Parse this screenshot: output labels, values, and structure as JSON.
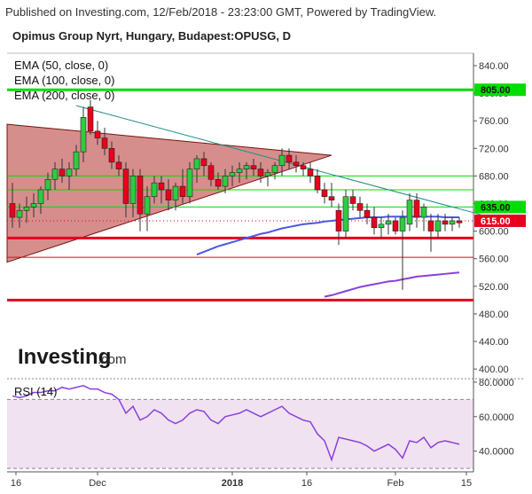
{
  "header": {
    "published": "Published on Investing.com, 12/Feb/2018 - 23:23:00 GMT, Powered by TradingView.",
    "title": "Opimus Group Nyrt, Hungary, Budapest:OPUSG, D"
  },
  "watermark": {
    "brand": "Investing",
    "suffix": ".com"
  },
  "colors": {
    "up_candle": "#2ecc40",
    "down_candle": "#e8001c",
    "wick": "#333333",
    "ema50": "#4a58e0",
    "ema200": "#8a3fdd",
    "support_red": "#e8001c",
    "resist_green": "#00dd00",
    "triangle_fill": "#b3312e",
    "trendline": "#1f8a8a",
    "rsi_line": "#8a3fdd",
    "rsi_band": "#f0e2f0"
  },
  "chart_data": [
    {
      "type": "candlestick",
      "legend": [
        "EMA (50, close, 0)",
        "EMA (100, close, 0)",
        "EMA (200, close, 0)"
      ],
      "ylim": [
        386,
        858
      ],
      "yticks": [
        "840.00",
        "800.00",
        "760.00",
        "720.00",
        "680.00",
        "640.00",
        "600.00",
        "560.00",
        "520.00",
        "480.00",
        "440.00",
        "400.00"
      ],
      "xticks": [
        "16",
        "Dec",
        "2018",
        "16",
        "Feb",
        "15"
      ],
      "tags": [
        {
          "label": "805.00",
          "value": 805,
          "color": "#00dd00"
        },
        {
          "label": "635.00",
          "value": 635,
          "color": "#00dd00"
        },
        {
          "label": "615.00",
          "value": 615,
          "color": "#e8001c"
        }
      ],
      "horizontal_lines": [
        {
          "value": 805,
          "color": "#00dd00",
          "style": "thick"
        },
        {
          "value": 680,
          "color": "#00dd00",
          "style": "thin"
        },
        {
          "value": 660,
          "color": "#00dd00",
          "style": "thin"
        },
        {
          "value": 635,
          "color": "#00dd00",
          "style": "thin"
        },
        {
          "value": 615,
          "color": "#e8001c",
          "style": "dotted"
        },
        {
          "value": 590,
          "color": "#e8001c",
          "style": "thick"
        },
        {
          "value": 562,
          "color": "#e8001c",
          "style": "thin"
        },
        {
          "value": 500,
          "color": "#e8001c",
          "style": "thick"
        }
      ],
      "candles": [
        [
          640,
          670,
          605,
          620
        ],
        [
          620,
          640,
          605,
          630
        ],
        [
          630,
          650,
          612,
          635
        ],
        [
          635,
          655,
          620,
          640
        ],
        [
          640,
          665,
          625,
          660
        ],
        [
          660,
          685,
          645,
          675
        ],
        [
          675,
          700,
          660,
          690
        ],
        [
          690,
          705,
          670,
          680
        ],
        [
          680,
          700,
          660,
          690
        ],
        [
          690,
          725,
          680,
          715
        ],
        [
          715,
          780,
          700,
          765
        ],
        [
          780,
          790,
          740,
          745
        ],
        [
          745,
          760,
          725,
          735
        ],
        [
          735,
          750,
          710,
          720
        ],
        [
          720,
          730,
          690,
          700
        ],
        [
          700,
          710,
          680,
          690
        ],
        [
          690,
          700,
          620,
          640
        ],
        [
          640,
          690,
          620,
          680
        ],
        [
          680,
          690,
          600,
          625
        ],
        [
          625,
          665,
          600,
          650
        ],
        [
          650,
          680,
          640,
          670
        ],
        [
          670,
          680,
          640,
          660
        ],
        [
          660,
          675,
          630,
          645
        ],
        [
          645,
          670,
          630,
          665
        ],
        [
          665,
          690,
          640,
          650
        ],
        [
          650,
          700,
          640,
          690
        ],
        [
          690,
          710,
          670,
          705
        ],
        [
          705,
          715,
          680,
          695
        ],
        [
          695,
          700,
          665,
          675
        ],
        [
          675,
          685,
          660,
          665
        ],
        [
          665,
          690,
          655,
          680
        ],
        [
          680,
          695,
          665,
          685
        ],
        [
          685,
          700,
          670,
          690
        ],
        [
          690,
          700,
          675,
          695
        ],
        [
          695,
          705,
          680,
          690
        ],
        [
          690,
          700,
          670,
          680
        ],
        [
          680,
          690,
          665,
          685
        ],
        [
          685,
          700,
          675,
          695
        ],
        [
          695,
          720,
          680,
          710
        ],
        [
          710,
          720,
          690,
          700
        ],
        [
          700,
          710,
          685,
          695
        ],
        [
          695,
          700,
          680,
          690
        ],
        [
          690,
          700,
          670,
          680
        ],
        [
          680,
          690,
          655,
          660
        ],
        [
          660,
          670,
          640,
          650
        ],
        [
          650,
          670,
          635,
          645
        ],
        [
          630,
          640,
          580,
          600
        ],
        [
          600,
          660,
          590,
          650
        ],
        [
          650,
          660,
          630,
          640
        ],
        [
          640,
          650,
          620,
          630
        ],
        [
          630,
          640,
          610,
          620
        ],
        [
          620,
          635,
          595,
          605
        ],
        [
          605,
          620,
          590,
          610
        ],
        [
          610,
          625,
          595,
          615
        ],
        [
          615,
          620,
          595,
          600
        ],
        [
          600,
          630,
          515,
          620
        ],
        [
          610,
          655,
          600,
          645
        ],
        [
          645,
          655,
          605,
          620
        ],
        [
          620,
          640,
          600,
          635
        ],
        [
          615,
          625,
          570,
          600
        ],
        [
          600,
          625,
          590,
          615
        ],
        [
          615,
          625,
          600,
          610
        ],
        [
          610,
          620,
          600,
          615
        ],
        [
          615,
          620,
          605,
          612
        ]
      ],
      "ema50": [
        null,
        null,
        null,
        null,
        null,
        null,
        null,
        null,
        null,
        null,
        null,
        null,
        null,
        null,
        null,
        null,
        null,
        null,
        null,
        null,
        null,
        null,
        null,
        null,
        null,
        null,
        566,
        570,
        574,
        578,
        581,
        584,
        587,
        590,
        593,
        596,
        598,
        601,
        604,
        606,
        608,
        610,
        611,
        612,
        614,
        615,
        616,
        617,
        618,
        619,
        620,
        620,
        620,
        621,
        621,
        621,
        621,
        621,
        621,
        621,
        621,
        620,
        620,
        620
      ],
      "ema200": [
        null,
        null,
        null,
        null,
        null,
        null,
        null,
        null,
        null,
        null,
        null,
        null,
        null,
        null,
        null,
        null,
        null,
        null,
        null,
        null,
        null,
        null,
        null,
        null,
        null,
        null,
        null,
        null,
        null,
        null,
        null,
        null,
        null,
        null,
        null,
        null,
        null,
        null,
        null,
        null,
        null,
        null,
        null,
        null,
        505,
        507,
        510,
        513,
        516,
        519,
        521,
        523,
        525,
        527,
        528,
        530,
        532,
        534,
        535,
        536,
        537,
        538,
        539,
        540
      ],
      "triangle": [
        [
          0,
          755
        ],
        [
          45,
          710
        ],
        [
          0,
          555
        ]
      ],
      "trendline": [
        [
          9,
          782
        ],
        [
          66,
          624
        ]
      ]
    },
    {
      "type": "line",
      "label": "RSI (14)",
      "ylim": [
        28,
        82
      ],
      "yticks": [
        "80.0000",
        "60.0000",
        "40.0000"
      ],
      "band": [
        30,
        70
      ],
      "values": [
        72,
        71,
        72,
        74,
        74,
        75,
        75,
        77,
        76,
        77,
        78,
        76,
        76,
        74,
        73,
        70,
        62,
        66,
        58,
        60,
        64,
        62,
        58,
        56,
        58,
        62,
        64,
        63,
        58,
        56,
        60,
        61,
        62,
        64,
        62,
        60,
        62,
        64,
        66,
        62,
        60,
        58,
        57,
        50,
        46,
        35,
        48,
        47,
        46,
        45,
        43,
        40,
        42,
        44,
        41,
        36,
        46,
        45,
        48,
        42,
        45,
        46,
        45,
        44
      ]
    }
  ]
}
